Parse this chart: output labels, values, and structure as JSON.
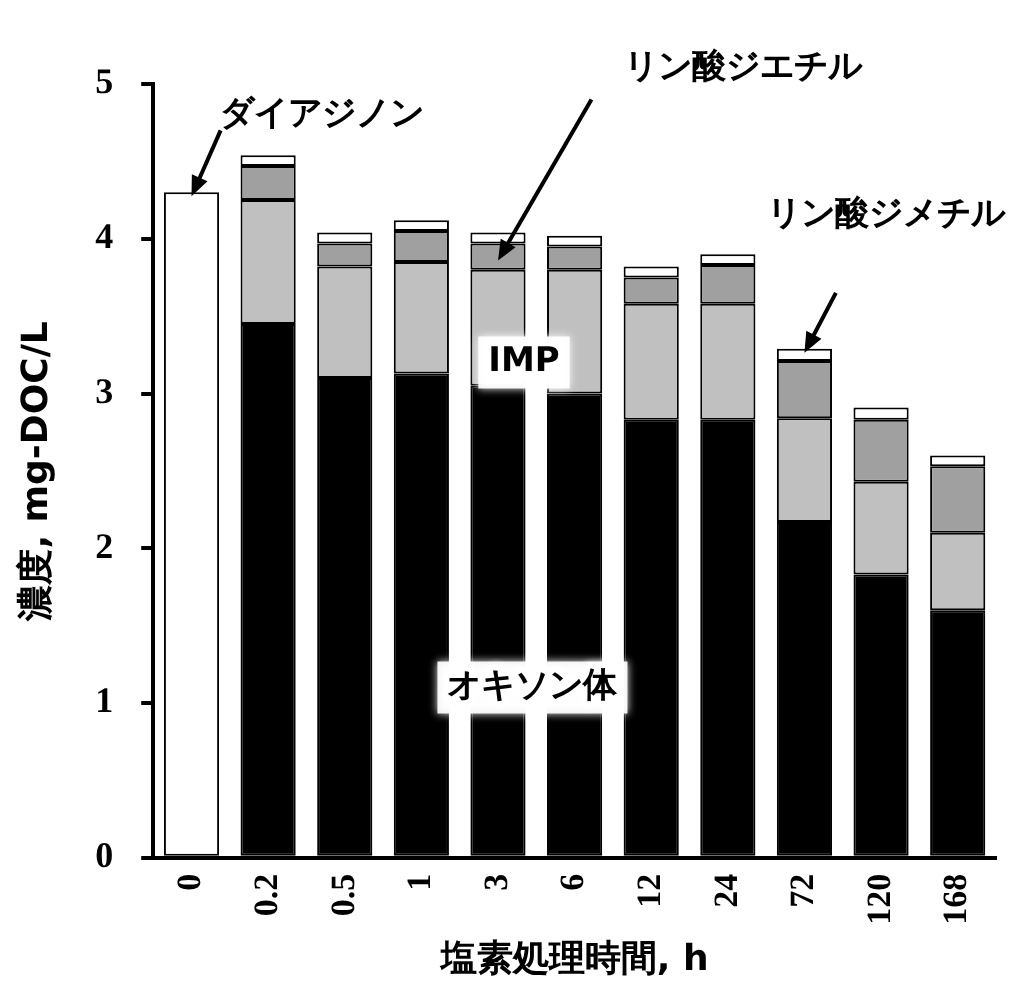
{
  "chart_data": {
    "type": "bar",
    "stacked": true,
    "xlabel": "塩素処理時間, h",
    "ylabel": "濃度, mg-DOC/L",
    "categories": [
      "0",
      "0.2",
      "0.5",
      "1",
      "3",
      "6",
      "12",
      "24",
      "72",
      "120",
      "168"
    ],
    "series": [
      {
        "name": "ダイアジノン",
        "color": "#ffffff",
        "values": [
          4.3,
          0,
          0,
          0,
          0,
          0,
          0,
          0,
          0,
          0,
          0
        ]
      },
      {
        "name": "オキソン体",
        "color": "#000000",
        "values": [
          0,
          3.45,
          3.1,
          3.13,
          3.05,
          3.0,
          2.83,
          2.83,
          2.17,
          1.83,
          1.6
        ]
      },
      {
        "name": "IMP",
        "color": "#c0c0c0",
        "values": [
          0,
          0.8,
          0.72,
          0.72,
          0.75,
          0.8,
          0.75,
          0.75,
          0.67,
          0.6,
          0.5
        ]
      },
      {
        "name": "リン酸ジエチル",
        "color": "#a0a0a0",
        "values": [
          0,
          0.22,
          0.15,
          0.2,
          0.17,
          0.15,
          0.17,
          0.25,
          0.37,
          0.4,
          0.43
        ]
      },
      {
        "name": "リン酸ジメチル",
        "color": "#ffffff",
        "values": [
          0,
          0.07,
          0.07,
          0.07,
          0.07,
          0.07,
          0.07,
          0.07,
          0.08,
          0.08,
          0.07
        ]
      }
    ],
    "ylim": [
      0,
      5
    ],
    "yticks": [
      0,
      1,
      2,
      3,
      4,
      5
    ],
    "grid": false,
    "legend": false
  }
}
